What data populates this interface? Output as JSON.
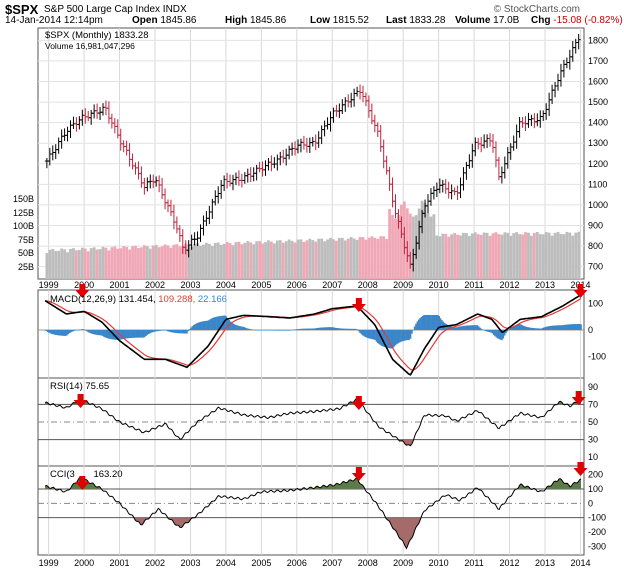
{
  "header": {
    "symbol": "$SPX",
    "name": "S&P 500 Large Cap Index",
    "exchange": "INDX",
    "watermark": "© StockCharts.com",
    "date": "14-Jan-2014 12:14pm",
    "open_label": "Open",
    "open": "1845.86",
    "high_label": "High",
    "high": "1845.86",
    "low_label": "Low",
    "low": "1815.52",
    "last_label": "Last",
    "last": "1833.28",
    "volume_label": "Volume",
    "volume": "17.0B",
    "chg_label": "Chg",
    "chg": "-15.08 (-0.82%)"
  },
  "legends": {
    "price": "$SPX (Monthly) 1833.28",
    "volume": "Volume 16,981,047,296",
    "macd_name": "MACD(12,26,9)",
    "macd_v1": "131.454,",
    "macd_v2": "109.288,",
    "macd_v3": "22.166",
    "rsi": "RSI(14) 75.65",
    "cci": "CCI(3",
    "cci_val": "163.20"
  },
  "colors": {
    "up": "#000000",
    "down": "#c0233d",
    "vol_up": "#bdbdbd",
    "vol_down": "#f0a8b6",
    "hist": "#3a86c8",
    "signal": "#e53935",
    "ob": "#5d7a4a",
    "os": "#a56a6a",
    "arrow": "#e00000"
  },
  "chart_data": {
    "type": "line",
    "x_ticks": [
      "1999",
      "2000",
      "2001",
      "2002",
      "2003",
      "2004",
      "2005",
      "2006",
      "2007",
      "2008",
      "2009",
      "2010",
      "2011",
      "2012",
      "2013",
      "2014"
    ],
    "price": {
      "title": "$SPX (Monthly)",
      "yticks": [
        700,
        800,
        900,
        1000,
        1100,
        1200,
        1300,
        1400,
        1500,
        1600,
        1700,
        1800
      ],
      "ylim": [
        640,
        1860
      ],
      "key_points": [
        [
          1998.9,
          1200
        ],
        [
          1999.5,
          1360
        ],
        [
          1999.9,
          1420
        ],
        [
          2000.6,
          1470
        ],
        [
          2001.0,
          1320
        ],
        [
          2001.7,
          1090
        ],
        [
          2002.0,
          1130
        ],
        [
          2002.6,
          900
        ],
        [
          2002.8,
          780
        ],
        [
          2003.2,
          850
        ],
        [
          2003.9,
          1110
        ],
        [
          2004.5,
          1130
        ],
        [
          2005.0,
          1180
        ],
        [
          2005.5,
          1220
        ],
        [
          2006.0,
          1290
        ],
        [
          2006.5,
          1300
        ],
        [
          2007.0,
          1440
        ],
        [
          2007.8,
          1560
        ],
        [
          2008.3,
          1340
        ],
        [
          2008.8,
          950
        ],
        [
          2009.2,
          700
        ],
        [
          2009.6,
          1000
        ],
        [
          2010.0,
          1100
        ],
        [
          2010.5,
          1050
        ],
        [
          2011.0,
          1290
        ],
        [
          2011.5,
          1320
        ],
        [
          2011.7,
          1130
        ],
        [
          2012.3,
          1400
        ],
        [
          2012.9,
          1420
        ],
        [
          2013.4,
          1630
        ],
        [
          2013.8,
          1760
        ],
        [
          2014.0,
          1833
        ]
      ],
      "volume_yticks": [
        "25B",
        "50B",
        "75B",
        "100B",
        "125B",
        "150B"
      ]
    },
    "macd": {
      "yticks": [
        100,
        0,
        -100
      ],
      "key_points": [
        [
          1998.9,
          110
        ],
        [
          1999.5,
          60
        ],
        [
          2000.0,
          70
        ],
        [
          2000.5,
          30
        ],
        [
          2001.0,
          -40
        ],
        [
          2001.7,
          -110
        ],
        [
          2002.3,
          -110
        ],
        [
          2002.9,
          -140
        ],
        [
          2003.5,
          -60
        ],
        [
          2004.0,
          40
        ],
        [
          2004.5,
          55
        ],
        [
          2005.2,
          50
        ],
        [
          2005.8,
          45
        ],
        [
          2006.5,
          60
        ],
        [
          2007.0,
          80
        ],
        [
          2007.7,
          90
        ],
        [
          2008.2,
          20
        ],
        [
          2008.7,
          -110
        ],
        [
          2009.2,
          -170
        ],
        [
          2009.6,
          -70
        ],
        [
          2010.0,
          10
        ],
        [
          2010.5,
          20
        ],
        [
          2011.1,
          60
        ],
        [
          2011.5,
          40
        ],
        [
          2011.8,
          -10
        ],
        [
          2012.3,
          40
        ],
        [
          2012.9,
          50
        ],
        [
          2013.5,
          90
        ],
        [
          2014.0,
          131
        ]
      ]
    },
    "rsi": {
      "yticks": [
        90,
        70,
        50,
        30,
        10
      ],
      "key_points": [
        [
          1998.9,
          72
        ],
        [
          1999.5,
          66
        ],
        [
          1999.9,
          76
        ],
        [
          2000.5,
          65
        ],
        [
          2001.0,
          50
        ],
        [
          2001.7,
          38
        ],
        [
          2002.3,
          48
        ],
        [
          2002.7,
          30
        ],
        [
          2003.2,
          50
        ],
        [
          2003.8,
          66
        ],
        [
          2004.5,
          58
        ],
        [
          2005.2,
          55
        ],
        [
          2005.8,
          60
        ],
        [
          2006.5,
          62
        ],
        [
          2007.2,
          65
        ],
        [
          2007.7,
          76
        ],
        [
          2008.3,
          45
        ],
        [
          2008.8,
          32
        ],
        [
          2009.2,
          22
        ],
        [
          2009.6,
          58
        ],
        [
          2010.2,
          57
        ],
        [
          2010.5,
          51
        ],
        [
          2011.1,
          63
        ],
        [
          2011.7,
          43
        ],
        [
          2012.3,
          60
        ],
        [
          2012.9,
          55
        ],
        [
          2013.4,
          73
        ],
        [
          2013.7,
          68
        ],
        [
          2014.0,
          75.65
        ]
      ]
    },
    "cci": {
      "yticks": [
        200,
        100,
        0,
        -100,
        -200,
        -300
      ],
      "key_points": [
        [
          1998.9,
          120
        ],
        [
          1999.5,
          80
        ],
        [
          1999.9,
          180
        ],
        [
          2000.5,
          100
        ],
        [
          2001.0,
          0
        ],
        [
          2001.6,
          -150
        ],
        [
          2002.1,
          -40
        ],
        [
          2002.7,
          -170
        ],
        [
          2003.2,
          -80
        ],
        [
          2003.8,
          50
        ],
        [
          2004.5,
          30
        ],
        [
          2005.0,
          80
        ],
        [
          2005.8,
          90
        ],
        [
          2006.5,
          110
        ],
        [
          2007.1,
          130
        ],
        [
          2007.7,
          170
        ],
        [
          2008.3,
          -20
        ],
        [
          2008.8,
          -200
        ],
        [
          2009.1,
          -310
        ],
        [
          2009.6,
          -50
        ],
        [
          2010.2,
          60
        ],
        [
          2010.6,
          20
        ],
        [
          2011.1,
          110
        ],
        [
          2011.7,
          -40
        ],
        [
          2012.3,
          130
        ],
        [
          2012.9,
          80
        ],
        [
          2013.4,
          170
        ],
        [
          2013.7,
          120
        ],
        [
          2014.0,
          163.2
        ]
      ]
    }
  }
}
